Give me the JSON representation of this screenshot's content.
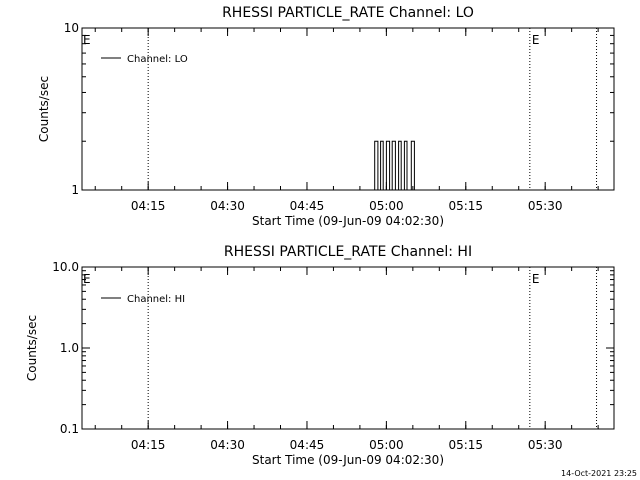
{
  "chart_data": [
    {
      "type": "line",
      "title": "RHESSI PARTICLE_RATE Channel: LO",
      "xlabel": "Start Time (09-Jun-09 04:02:30)",
      "ylabel": "Counts/sec",
      "yscale": "log",
      "ylim": [
        1,
        10
      ],
      "xlim_minutes": [
        0,
        100.5
      ],
      "xticks": [
        {
          "minutes": 12.5,
          "label": "04:15"
        },
        {
          "minutes": 27.5,
          "label": "04:30"
        },
        {
          "minutes": 42.5,
          "label": "04:45"
        },
        {
          "minutes": 57.5,
          "label": "05:00"
        },
        {
          "minutes": 72.5,
          "label": "05:15"
        },
        {
          "minutes": 87.5,
          "label": "05:30"
        }
      ],
      "yticks": [
        {
          "value": 1,
          "label": "1"
        },
        {
          "value": 10,
          "label": "10"
        }
      ],
      "event_lines": [
        {
          "minutes": 12.5,
          "label": ""
        },
        {
          "minutes": 84.6,
          "label": "E"
        },
        {
          "minutes": 97.2,
          "label": ""
        }
      ],
      "start_marker_label": "E",
      "legend": [
        {
          "name": "Channel: LO"
        }
      ],
      "legend_position": "top-left",
      "series": [
        {
          "name": "Channel: LO",
          "x_minutes": [
            55,
            55.3,
            55.3,
            55.9,
            55.9,
            56.4,
            56.4,
            56.9,
            56.9,
            57.5,
            57.5,
            58.1,
            58.1,
            58.6,
            58.6,
            59.2,
            59.2,
            59.8,
            59.8,
            60.3,
            60.3,
            60.9,
            60.9,
            61.4,
            61.4,
            62.2,
            62.2,
            62.8,
            62.8
          ],
          "y": [
            1,
            1,
            2,
            2,
            1,
            1,
            2,
            2,
            1,
            1,
            2,
            2,
            1,
            1,
            2,
            2,
            1,
            1,
            2,
            2,
            1,
            1,
            2,
            2,
            1,
            1,
            2,
            2,
            1
          ]
        }
      ]
    },
    {
      "type": "line",
      "title": "RHESSI PARTICLE_RATE Channel: HI",
      "xlabel": "Start Time (09-Jun-09 04:02:30)",
      "ylabel": "Counts/sec",
      "yscale": "log",
      "ylim": [
        0.1,
        10.0
      ],
      "xlim_minutes": [
        0,
        100.5
      ],
      "xticks": [
        {
          "minutes": 12.5,
          "label": "04:15"
        },
        {
          "minutes": 27.5,
          "label": "04:30"
        },
        {
          "minutes": 42.5,
          "label": "04:45"
        },
        {
          "minutes": 57.5,
          "label": "05:00"
        },
        {
          "minutes": 72.5,
          "label": "05:15"
        },
        {
          "minutes": 87.5,
          "label": "05:30"
        }
      ],
      "yticks": [
        {
          "value": 0.1,
          "label": "0.1"
        },
        {
          "value": 1.0,
          "label": "1.0"
        },
        {
          "value": 10.0,
          "label": "10.0"
        }
      ],
      "event_lines": [
        {
          "minutes": 12.5,
          "label": ""
        },
        {
          "minutes": 84.6,
          "label": "E"
        },
        {
          "minutes": 97.2,
          "label": ""
        }
      ],
      "start_marker_label": "E",
      "legend": [
        {
          "name": "Channel: HI"
        }
      ],
      "legend_position": "top-left",
      "series": [
        {
          "name": "Channel: HI",
          "x_minutes": [],
          "y": []
        }
      ]
    }
  ],
  "footer": {
    "timestamp": "14-Oct-2021 23:25"
  }
}
